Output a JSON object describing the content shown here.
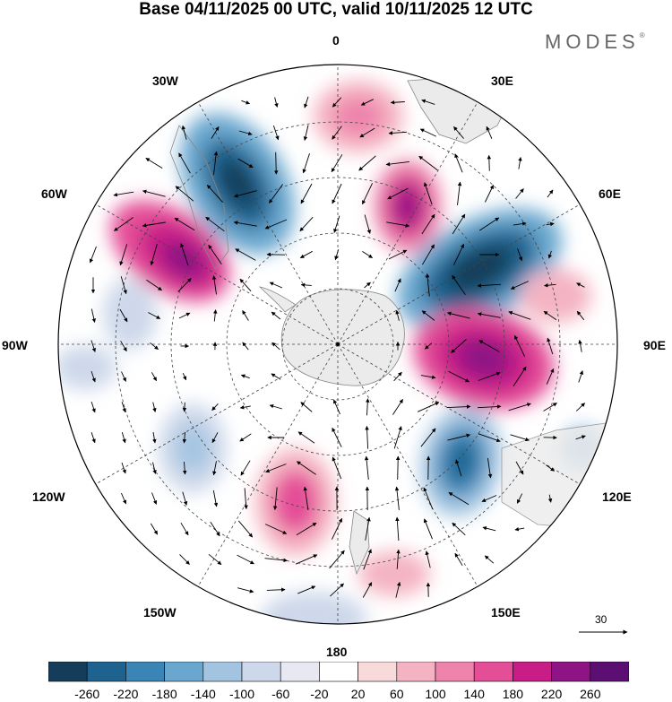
{
  "title": "Base 04/11/2025 00 UTC, valid 10/11/2025 12 UTC",
  "brand": "MODES",
  "brand_mark": "®",
  "map": {
    "projection": "south-polar-stereographic",
    "longitude_labels": [
      "0",
      "30E",
      "60E",
      "90E",
      "120E",
      "150E",
      "180",
      "150W",
      "120W",
      "90W",
      "60W",
      "30W"
    ],
    "ocean_color": "#ffffff",
    "land_color": "#ebebeb"
  },
  "reference_vector": {
    "label": "30"
  },
  "colorbar": {
    "colors": [
      "#153c59",
      "#1e638f",
      "#3a85b6",
      "#6aa7cf",
      "#a2c4e1",
      "#cdd8ea",
      "#e8e8f3",
      "#ffffff",
      "#f9dada",
      "#f4b3c2",
      "#ee83ab",
      "#e44e97",
      "#c81c87",
      "#8e1384",
      "#5c0f72"
    ],
    "tick_labels": [
      "-260",
      "-220",
      "-180",
      "-140",
      "-100",
      "-60",
      "-20",
      "20",
      "60",
      "100",
      "140",
      "180",
      "220",
      "260"
    ]
  }
}
